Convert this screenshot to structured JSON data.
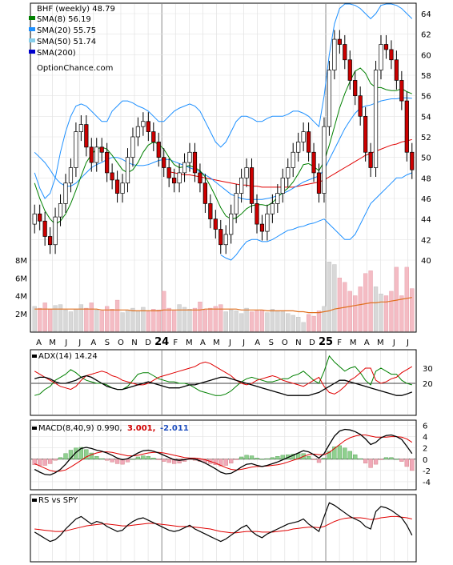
{
  "chart_data": [
    {
      "type": "candlestick",
      "title": "BHF (weekly) 48.79",
      "watermark": "OptionChance.com",
      "legend_placement": "top-left",
      "legend": [
        {
          "text": "SMA(8) 56.19",
          "color": "#008000"
        },
        {
          "text": "SMA(20) 55.75",
          "color": "#1e90ff"
        },
        {
          "text": "SMA(50) 51.74",
          "color": "#87ceeb"
        },
        {
          "text": "SMA(200)",
          "color": "#0000cd"
        }
      ],
      "ylim": [
        40,
        65
      ],
      "y_ticks": [
        "64",
        "62",
        "60",
        "58",
        "56",
        "54",
        "52",
        "50",
        "48",
        "46",
        "44",
        "42",
        "40"
      ],
      "x_ticks": [
        "A",
        "M",
        "J",
        "J",
        "A",
        "S",
        "O",
        "N",
        "D",
        "24",
        "F",
        "M",
        "A",
        "M",
        "J",
        "J",
        "A",
        "S",
        "O",
        "N",
        "D",
        "25",
        "F",
        "M",
        "A",
        "M",
        "J",
        "J"
      ],
      "x_ticks_bold": [
        "24",
        "25"
      ],
      "close": [
        44.5,
        43.8,
        42.3,
        41.5,
        44.2,
        45.5,
        47.5,
        49.0,
        52.5,
        53.2,
        51.0,
        49.5,
        51.0,
        50.5,
        48.5,
        47.8,
        46.5,
        47.5,
        50.0,
        52.0,
        53.0,
        53.5,
        52.5,
        51.5,
        50.0,
        49.0,
        48.0,
        47.5,
        48.5,
        49.5,
        50.5,
        48.5,
        47.5,
        45.5,
        44.0,
        43.0,
        41.5,
        42.5,
        44.5,
        46.5,
        48.0,
        49.0,
        45.5,
        43.5,
        42.8,
        44.5,
        45.5,
        46.5,
        48.0,
        49.0,
        50.5,
        51.5,
        52.5,
        50.5,
        48.5,
        46.5,
        53.0,
        58.5,
        61.5,
        61.0,
        59.5,
        57.5,
        56.0,
        54.0,
        50.5,
        49.0,
        58.5,
        61.0,
        60.5,
        59.5,
        57.5,
        55.5,
        50.5,
        48.79
      ],
      "open": [
        43.5,
        44.5,
        43.8,
        42.3,
        41.5,
        44.2,
        45.5,
        47.5,
        49.0,
        52.5,
        53.2,
        51.0,
        49.5,
        51.0,
        50.5,
        48.5,
        47.8,
        46.5,
        47.5,
        50.0,
        52.0,
        53.0,
        53.5,
        52.5,
        51.5,
        50.0,
        49.0,
        48.0,
        47.5,
        48.5,
        49.5,
        50.5,
        48.5,
        47.5,
        45.5,
        44.0,
        43.0,
        41.5,
        42.5,
        44.5,
        46.5,
        48.0,
        49.0,
        45.5,
        43.5,
        42.8,
        44.5,
        45.5,
        46.5,
        48.0,
        49.0,
        50.5,
        51.5,
        52.5,
        50.5,
        48.5,
        46.5,
        53.0,
        58.5,
        61.5,
        61.0,
        59.5,
        57.5,
        56.0,
        54.0,
        50.5,
        49.0,
        58.5,
        61.0,
        60.5,
        59.5,
        57.5,
        55.5,
        50.5
      ],
      "sma8": [
        47.5,
        46.0,
        44.8,
        44.0,
        43.5,
        43.8,
        44.5,
        45.5,
        46.8,
        48.2,
        49.5,
        50.3,
        50.8,
        51.0,
        50.8,
        50.2,
        49.5,
        48.8,
        48.5,
        48.8,
        49.5,
        50.5,
        51.2,
        51.5,
        51.3,
        50.8,
        50.0,
        49.3,
        49.0,
        49.1,
        49.2,
        49.0,
        48.7,
        48.1,
        47.2,
        46.2,
        45.1,
        44.3,
        44.0,
        44.1,
        44.5,
        45.0,
        45.3,
        45.4,
        45.4,
        45.3,
        45.6,
        46.1,
        46.6,
        47.0,
        47.6,
        48.4,
        49.3,
        49.4,
        49.1,
        48.7,
        49.6,
        51.2,
        53.0,
        54.8,
        56.2,
        57.4,
        58.4,
        58.7,
        58.2,
        57.2,
        56.8,
        56.8,
        56.6,
        56.5,
        56.5,
        56.7,
        56.4,
        56.19
      ],
      "sma20": [
        50.5,
        50.0,
        49.5,
        48.8,
        48.0,
        47.5,
        47.2,
        47.2,
        47.5,
        48.0,
        48.5,
        49.0,
        49.3,
        49.5,
        49.8,
        50.0,
        50.0,
        49.8,
        49.5,
        49.3,
        49.2,
        49.2,
        49.3,
        49.5,
        49.7,
        49.8,
        49.8,
        49.6,
        49.4,
        49.2,
        49.0,
        48.8,
        48.6,
        48.3,
        48.0,
        47.6,
        47.2,
        46.8,
        46.4,
        46.2,
        46.0,
        45.9,
        45.9,
        45.9,
        45.9,
        46.0,
        46.1,
        46.3,
        46.5,
        46.7,
        47.0,
        47.3,
        47.6,
        47.8,
        48.0,
        48.2,
        48.8,
        49.8,
        50.8,
        51.8,
        52.8,
        53.6,
        54.3,
        54.8,
        55.0,
        55.1,
        55.3,
        55.5,
        55.6,
        55.7,
        55.7,
        55.8,
        55.8,
        55.75
      ],
      "sma50": [
        null,
        null,
        null,
        null,
        null,
        null,
        null,
        null,
        null,
        null,
        null,
        null,
        null,
        null,
        null,
        null,
        null,
        null,
        null,
        null,
        null,
        null,
        null,
        null,
        null,
        null,
        48.6,
        48.5,
        48.4,
        48.3,
        48.3,
        48.2,
        48.1,
        48.0,
        47.9,
        47.8,
        47.7,
        47.6,
        47.5,
        47.4,
        47.3,
        47.3,
        47.2,
        47.2,
        47.1,
        47.1,
        47.1,
        47.1,
        47.1,
        47.1,
        47.1,
        47.2,
        47.3,
        47.4,
        47.5,
        47.6,
        47.8,
        48.1,
        48.4,
        48.7,
        49.0,
        49.3,
        49.6,
        49.9,
        50.2,
        50.4,
        50.6,
        50.8,
        51.0,
        51.2,
        51.3,
        51.5,
        51.6,
        51.74
      ],
      "upper_band": [
        48.5,
        47.0,
        46.0,
        46.5,
        48.0,
        50.5,
        52.5,
        54.0,
        55.0,
        55.2,
        55.0,
        54.5,
        54.0,
        53.5,
        53.5,
        54.5,
        55.0,
        55.5,
        55.5,
        55.3,
        55.0,
        54.8,
        54.5,
        54.0,
        53.5,
        53.5,
        54.0,
        54.5,
        54.8,
        55.0,
        55.2,
        55.0,
        54.5,
        53.5,
        52.5,
        51.5,
        51.0,
        51.5,
        52.5,
        53.5,
        54.0,
        54.0,
        53.8,
        53.5,
        53.5,
        53.8,
        54.0,
        54.0,
        54.0,
        54.2,
        54.5,
        54.5,
        54.3,
        54.0,
        53.5,
        53.0,
        56.0,
        60.0,
        63.0,
        64.5,
        65.0,
        65.0,
        64.8,
        64.5,
        64.0,
        63.5,
        64.0,
        64.8,
        65.0,
        65.0,
        64.8,
        64.5,
        64.0,
        63.5
      ],
      "lower_band": [
        null,
        null,
        null,
        null,
        null,
        null,
        null,
        null,
        null,
        null,
        null,
        null,
        null,
        null,
        null,
        null,
        null,
        null,
        null,
        null,
        null,
        null,
        null,
        null,
        null,
        null,
        null,
        null,
        null,
        null,
        null,
        null,
        null,
        null,
        null,
        null,
        40.5,
        40.2,
        40.0,
        40.5,
        41.2,
        41.8,
        42.0,
        42.0,
        41.8,
        41.8,
        42.0,
        42.3,
        42.6,
        42.9,
        43.0,
        43.2,
        43.3,
        43.5,
        43.6,
        43.8,
        44.0,
        43.5,
        43.0,
        42.5,
        42.0,
        42.0,
        42.5,
        43.5,
        44.5,
        45.5,
        46.0,
        46.5,
        47.0,
        47.5,
        48.0,
        48.0,
        48.3,
        48.5
      ],
      "volume_axis": [
        "8M",
        "6M",
        "4M",
        "2M"
      ],
      "volume_ylim": [
        0,
        8
      ],
      "volume_millions": [
        2.8,
        2.6,
        3.2,
        2.5,
        2.9,
        3.0,
        2.4,
        2.2,
        2.5,
        3.0,
        2.6,
        3.2,
        2.4,
        2.3,
        2.8,
        2.5,
        3.5,
        2.1,
        2.4,
        2.6,
        2.3,
        2.7,
        2.2,
        2.5,
        2.4,
        4.5,
        2.6,
        2.3,
        3.0,
        2.7,
        2.5,
        2.6,
        3.3,
        2.4,
        2.6,
        2.8,
        3.0,
        2.2,
        2.4,
        2.3,
        2.0,
        2.6,
        2.2,
        2.3,
        2.4,
        2.1,
        2.5,
        2.3,
        2.2,
        2.0,
        1.8,
        1.6,
        1.0,
        1.9,
        1.7,
        2.3,
        2.8,
        7.8,
        7.5,
        6.0,
        5.5,
        4.5,
        4.0,
        5.0,
        6.5,
        6.8,
        5.0,
        4.2,
        4.0,
        4.5,
        7.2,
        4.0,
        7.2,
        4.8
      ],
      "volume_sma_millions": [
        2.5,
        2.5,
        2.5,
        2.5,
        2.5,
        2.5,
        2.5,
        2.5,
        2.5,
        2.5,
        2.5,
        2.5,
        2.5,
        2.4,
        2.4,
        2.4,
        2.4,
        2.4,
        2.4,
        2.3,
        2.3,
        2.3,
        2.3,
        2.3,
        2.3,
        2.4,
        2.4,
        2.4,
        2.4,
        2.4,
        2.4,
        2.4,
        2.4,
        2.5,
        2.5,
        2.5,
        2.5,
        2.5,
        2.5,
        2.5,
        2.4,
        2.4,
        2.4,
        2.4,
        2.4,
        2.3,
        2.3,
        2.3,
        2.3,
        2.3,
        2.3,
        2.2,
        2.2,
        2.1,
        2.1,
        2.1,
        2.2,
        2.3,
        2.5,
        2.6,
        2.7,
        2.8,
        2.9,
        3.0,
        3.1,
        3.2,
        3.2,
        3.3,
        3.3,
        3.4,
        3.5,
        3.6,
        3.7,
        3.8
      ]
    },
    {
      "type": "line",
      "title": "ADX(14) 14.24",
      "y_ticks": [
        "30",
        "20"
      ],
      "ylim": [
        0,
        40
      ],
      "reference_line": 20,
      "adx": [
        23,
        24,
        24,
        23,
        21,
        20,
        20,
        21,
        22,
        24,
        25,
        24,
        22,
        20,
        18,
        17,
        16,
        16,
        17,
        18,
        19,
        20,
        21,
        20,
        19,
        18,
        17,
        17,
        17,
        18,
        19,
        19,
        20,
        21,
        22,
        23,
        24,
        24,
        23,
        22,
        21,
        20,
        19,
        18,
        17,
        16,
        15,
        14,
        13,
        12,
        12,
        12,
        12,
        12,
        13,
        14,
        16,
        18,
        20,
        22,
        22,
        21,
        20,
        19,
        18,
        17,
        16,
        15,
        14,
        13,
        12,
        12,
        13,
        14.24
      ],
      "plus_di": [
        12,
        13,
        16,
        18,
        22,
        24,
        26,
        29,
        27,
        24,
        22,
        21,
        20,
        20,
        19,
        17,
        16,
        16,
        18,
        22,
        26,
        27,
        27,
        25,
        23,
        22,
        21,
        21,
        20,
        20,
        19,
        17,
        15,
        14,
        13,
        12,
        12,
        13,
        15,
        18,
        21,
        23,
        24,
        23,
        22,
        21,
        21,
        22,
        23,
        23,
        25,
        26,
        28,
        25,
        22,
        20,
        28,
        38,
        34,
        31,
        28,
        30,
        31,
        27,
        22,
        19,
        28,
        30,
        28,
        26,
        26,
        22,
        20,
        19
      ],
      "minus_di": [
        28,
        26,
        24,
        22,
        20,
        18,
        17,
        16,
        18,
        22,
        25,
        26,
        27,
        28,
        27,
        25,
        24,
        22,
        21,
        20,
        19,
        19,
        20,
        22,
        24,
        25,
        26,
        27,
        28,
        29,
        30,
        31,
        33,
        34,
        33,
        31,
        29,
        27,
        25,
        22,
        20,
        19,
        20,
        22,
        23,
        24,
        25,
        24,
        22,
        21,
        20,
        19,
        18,
        20,
        22,
        24,
        18,
        14,
        13,
        15,
        18,
        22,
        24,
        27,
        30,
        30,
        22,
        20,
        21,
        23,
        24,
        27,
        29,
        31
      ]
    },
    {
      "type": "line",
      "title": "MACD(8,40,9) 0.990,",
      "signal_label": "3.001,",
      "hist_label": "-2.011",
      "y_ticks": [
        "6",
        "4",
        "2",
        "0",
        "-2",
        "-4"
      ],
      "ylim": [
        -5,
        6.5
      ],
      "macd": [
        -1.8,
        -2.3,
        -2.7,
        -2.8,
        -2.4,
        -1.8,
        -0.9,
        0.2,
        1.2,
        1.9,
        2.1,
        1.9,
        1.6,
        1.4,
        1.1,
        0.7,
        0.2,
        -0.1,
        0.1,
        0.6,
        1.1,
        1.5,
        1.6,
        1.4,
        1.1,
        0.7,
        0.3,
        -0.1,
        -0.2,
        -0.1,
        0.1,
        0.0,
        -0.3,
        -0.7,
        -1.2,
        -1.7,
        -2.3,
        -2.6,
        -2.5,
        -2.0,
        -1.4,
        -0.9,
        -0.8,
        -1.1,
        -1.3,
        -1.1,
        -0.8,
        -0.5,
        -0.1,
        0.3,
        0.7,
        1.1,
        1.5,
        1.3,
        0.8,
        0.2,
        1.0,
        2.6,
        4.1,
        5.0,
        5.3,
        5.2,
        4.9,
        4.4,
        3.6,
        2.6,
        3.0,
        3.8,
        4.2,
        4.3,
        4.0,
        3.5,
        2.3,
        0.99
      ],
      "signal": [
        -0.8,
        -1.2,
        -1.6,
        -2.0,
        -2.2,
        -2.1,
        -1.9,
        -1.4,
        -0.8,
        -0.2,
        0.4,
        0.8,
        1.1,
        1.3,
        1.3,
        1.2,
        1.0,
        0.8,
        0.6,
        0.6,
        0.7,
        0.9,
        1.1,
        1.2,
        1.2,
        1.1,
        0.9,
        0.7,
        0.5,
        0.3,
        0.2,
        0.2,
        0.1,
        -0.1,
        -0.4,
        -0.7,
        -1.1,
        -1.5,
        -1.8,
        -1.9,
        -1.8,
        -1.6,
        -1.4,
        -1.3,
        -1.3,
        -1.2,
        -1.1,
        -1.0,
        -0.8,
        -0.5,
        -0.2,
        0.1,
        0.5,
        0.8,
        0.9,
        0.8,
        0.8,
        1.2,
        1.9,
        2.6,
        3.3,
        3.8,
        4.1,
        4.3,
        4.3,
        4.1,
        3.9,
        3.9,
        3.9,
        4.0,
        4.0,
        3.9,
        3.6,
        3.0
      ]
    },
    {
      "type": "line",
      "title": "RS vs SPY",
      "rs": [
        45,
        40,
        35,
        30,
        33,
        40,
        50,
        58,
        66,
        70,
        64,
        58,
        62,
        60,
        54,
        50,
        46,
        48,
        56,
        62,
        66,
        68,
        64,
        60,
        56,
        52,
        48,
        46,
        48,
        52,
        56,
        50,
        46,
        42,
        38,
        34,
        30,
        34,
        40,
        46,
        52,
        56,
        46,
        40,
        36,
        42,
        46,
        50,
        54,
        58,
        60,
        62,
        66,
        58,
        52,
        46,
        70,
        92,
        88,
        82,
        76,
        70,
        66,
        62,
        54,
        50,
        78,
        86,
        84,
        80,
        74,
        68,
        56,
        40
      ],
      "rs_ma": [
        50,
        49,
        48,
        47,
        46,
        46,
        47,
        49,
        51,
        53,
        55,
        56,
        57,
        58,
        58,
        57,
        56,
        55,
        55,
        56,
        57,
        58,
        59,
        59,
        58,
        57,
        56,
        55,
        54,
        54,
        54,
        53,
        52,
        51,
        50,
        48,
        46,
        45,
        44,
        44,
        45,
        46,
        46,
        46,
        45,
        45,
        45,
        46,
        47,
        48,
        50,
        51,
        52,
        53,
        53,
        52,
        54,
        58,
        62,
        65,
        67,
        68,
        68,
        68,
        67,
        65,
        66,
        68,
        69,
        70,
        70,
        69,
        68,
        66
      ]
    }
  ]
}
